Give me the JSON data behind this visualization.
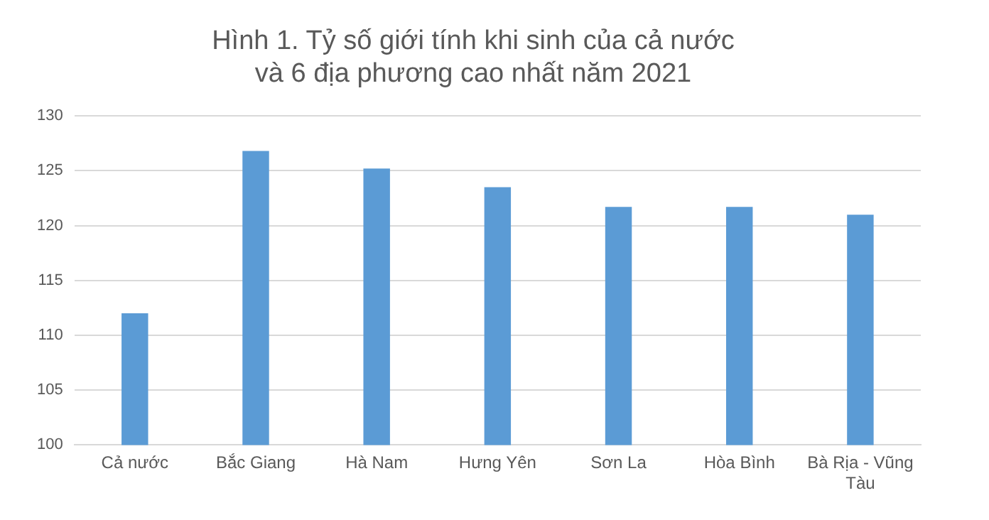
{
  "chart_data": {
    "type": "bar",
    "title": "Hình 1. Tỷ số giới tính khi sinh của cả nước và 6 địa phương cao nhất năm 2021",
    "categories": [
      "Cả nước",
      "Bắc Giang",
      "Hà Nam",
      "Hưng Yên",
      "Sơn La",
      "Hòa Bình",
      "Bà Rịa - Vũng Tàu"
    ],
    "values": [
      112.0,
      126.8,
      125.2,
      123.5,
      121.7,
      121.7,
      121.0
    ],
    "color": "#5b9bd5",
    "ylim": [
      100,
      130
    ],
    "yticks": [
      100,
      105,
      110,
      115,
      120,
      125,
      130
    ],
    "grid": "y"
  }
}
